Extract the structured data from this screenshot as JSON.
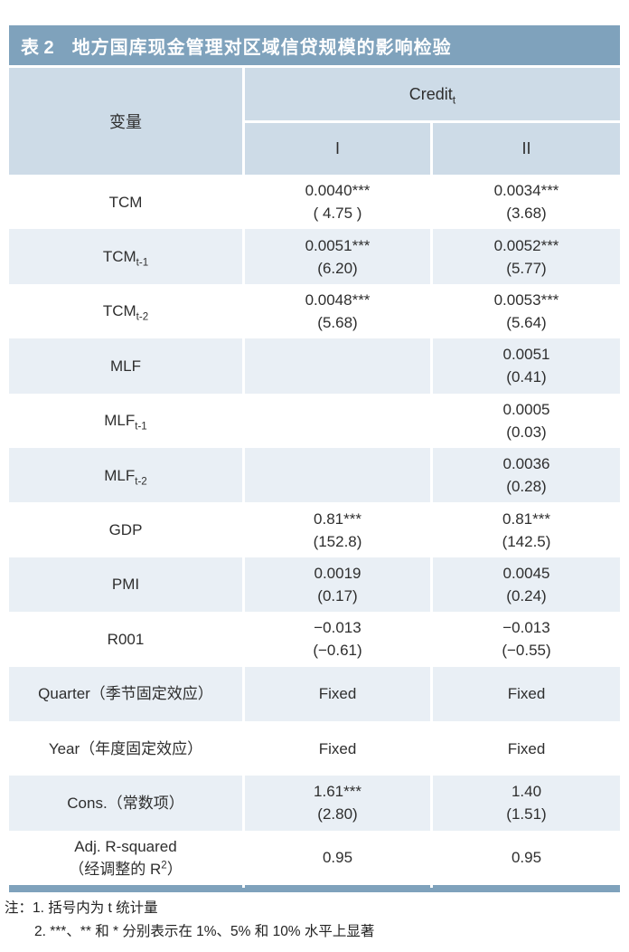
{
  "colors": {
    "accent_bar": "#7fa2bc",
    "header_bg": "#cddbe7",
    "row_shade_bg": "#e9eff5",
    "title_text": "#ffffff",
    "body_text": "#2e2e2e"
  },
  "title_bar": {
    "prefix": "表 2",
    "title": "地方国库现金管理对区域信贷规模的影响检验"
  },
  "table": {
    "variable_header": "变量",
    "group_header": "Credit_{t}",
    "sub_headers": [
      "I",
      "II"
    ],
    "rows": [
      {
        "label": "TCM",
        "label2": "",
        "shaded": false,
        "col1": {
          "value": "0.0040***",
          "tstat": "( 4.75 )"
        },
        "col2": {
          "value": "0.0034***",
          "tstat": "(3.68)"
        }
      },
      {
        "label": "TCM_{t-1}",
        "label2": "",
        "shaded": true,
        "col1": {
          "value": "0.0051***",
          "tstat": "(6.20)"
        },
        "col2": {
          "value": "0.0052***",
          "tstat": "(5.77)"
        }
      },
      {
        "label": "TCM_{t-2}",
        "label2": "",
        "shaded": false,
        "col1": {
          "value": "0.0048***",
          "tstat": "(5.68)"
        },
        "col2": {
          "value": "0.0053***",
          "tstat": "(5.64)"
        }
      },
      {
        "label": "MLF",
        "label2": "",
        "shaded": true,
        "col1": {
          "value": "",
          "tstat": ""
        },
        "col2": {
          "value": "0.0051",
          "tstat": "(0.41)"
        }
      },
      {
        "label": "MLF_{t-1}",
        "label2": "",
        "shaded": false,
        "col1": {
          "value": "",
          "tstat": ""
        },
        "col2": {
          "value": "0.0005",
          "tstat": "(0.03)"
        }
      },
      {
        "label": "MLF_{t-2}",
        "label2": "",
        "shaded": true,
        "col1": {
          "value": "",
          "tstat": ""
        },
        "col2": {
          "value": "0.0036",
          "tstat": "(0.28)"
        }
      },
      {
        "label": "GDP",
        "label2": "",
        "shaded": false,
        "col1": {
          "value": "0.81***",
          "tstat": "(152.8)"
        },
        "col2": {
          "value": "0.81***",
          "tstat": "(142.5)"
        }
      },
      {
        "label": "PMI",
        "label2": "",
        "shaded": true,
        "col1": {
          "value": "0.0019",
          "tstat": "(0.17)"
        },
        "col2": {
          "value": "0.0045",
          "tstat": "(0.24)"
        }
      },
      {
        "label": "R001",
        "label2": "",
        "shaded": false,
        "col1": {
          "value": "−0.013",
          "tstat": "(−0.61)"
        },
        "col2": {
          "value": "−0.013",
          "tstat": "(−0.55)"
        }
      },
      {
        "label": "Quarter（季节固定效应）",
        "label2": "",
        "shaded": true,
        "col1": {
          "value": "Fixed",
          "tstat": ""
        },
        "col2": {
          "value": "Fixed",
          "tstat": ""
        }
      },
      {
        "label": "Year（年度固定效应）",
        "label2": "",
        "shaded": false,
        "col1": {
          "value": "Fixed",
          "tstat": ""
        },
        "col2": {
          "value": "Fixed",
          "tstat": ""
        }
      },
      {
        "label": "Cons.（常数项）",
        "label2": "",
        "shaded": true,
        "col1": {
          "value": "1.61***",
          "tstat": "(2.80)"
        },
        "col2": {
          "value": "1.40",
          "tstat": "(1.51)"
        }
      },
      {
        "label": "Adj. R-squared",
        "label2": "（经调整的 R^{2}）",
        "shaded": false,
        "col1": {
          "value": "0.95",
          "tstat": ""
        },
        "col2": {
          "value": "0.95",
          "tstat": ""
        }
      }
    ]
  },
  "notes": {
    "line1": "注：1. 括号内为 t 统计量",
    "line2": "2. ***、** 和 * 分别表示在 1%、5% 和 10% 水平上显著"
  }
}
